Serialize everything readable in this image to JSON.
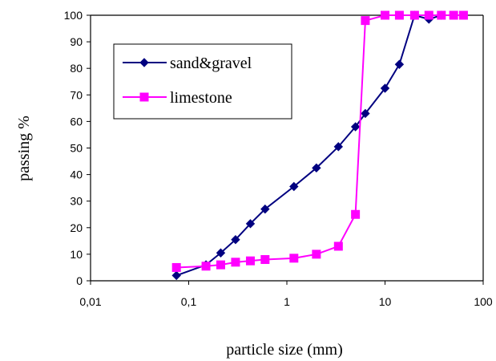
{
  "chart_data": {
    "type": "line",
    "xscale": "log",
    "xlim": [
      0.01,
      100
    ],
    "ylim": [
      0,
      100
    ],
    "xlabel": "particle size (mm)",
    "ylabel": "passing %",
    "x_ticks": [
      0.01,
      0.1,
      1,
      10,
      100
    ],
    "x_tick_labels": [
      "0,01",
      "0,1",
      "1",
      "10",
      "100"
    ],
    "y_ticks": [
      0,
      10,
      20,
      30,
      40,
      50,
      60,
      70,
      80,
      90,
      100
    ],
    "y_tick_labels": [
      "0",
      "10",
      "20",
      "30",
      "40",
      "50",
      "60",
      "70",
      "80",
      "90",
      "100"
    ],
    "grid": false,
    "legend_position": "top-left",
    "series": [
      {
        "name": "sand&gravel",
        "color": "#000080",
        "marker": "diamond",
        "x": [
          0.075,
          0.15,
          0.212,
          0.3,
          0.425,
          0.6,
          1.18,
          2,
          3.35,
          5,
          6.3,
          10,
          14,
          20,
          28,
          37.5
        ],
        "y": [
          2,
          6,
          10.5,
          15.5,
          21.5,
          27,
          35.5,
          42.5,
          50.5,
          58,
          63,
          72.5,
          81.5,
          100,
          98.5,
          100
        ]
      },
      {
        "name": "limestone",
        "color": "#FF00FF",
        "marker": "square",
        "x": [
          0.075,
          0.15,
          0.212,
          0.3,
          0.425,
          0.6,
          1.18,
          2,
          3.35,
          5,
          6.3,
          10,
          14,
          20,
          28,
          37.5,
          50,
          63
        ],
        "y": [
          5,
          5.5,
          6,
          7,
          7.5,
          8,
          8.5,
          10,
          13,
          25,
          98,
          100,
          100,
          100,
          100,
          100,
          100,
          100
        ]
      }
    ]
  }
}
